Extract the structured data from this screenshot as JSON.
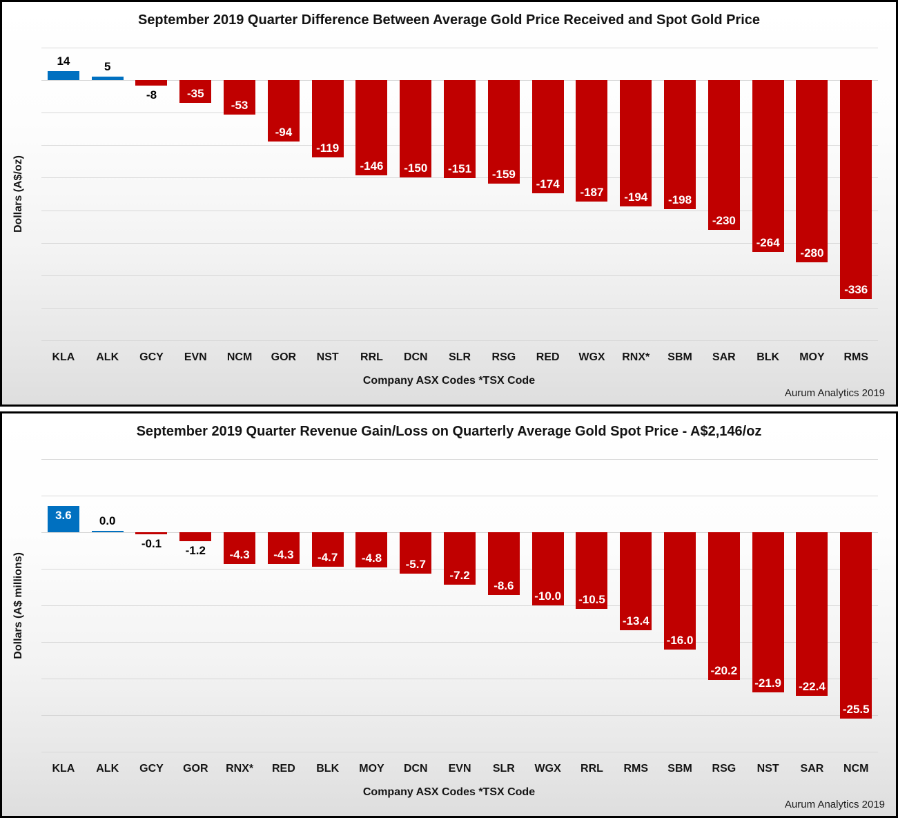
{
  "colors": {
    "positive_bar": "#0070C0",
    "negative_bar": "#C00000",
    "gridline": "#d7d7d7",
    "title_text": "#141414"
  },
  "chart_data": [
    {
      "type": "bar",
      "title": "September 2019 Quarter Difference Between Average Gold Price Received and Spot Gold Price",
      "ylabel": "Dollars (A$/oz)",
      "xlabel": "Company ASX Codes *TSX Code",
      "attribution": "Aurum Analytics 2019",
      "legend": "none",
      "grid": true,
      "categories": [
        "KLA",
        "ALK",
        "GCY",
        "EVN",
        "NCM",
        "GOR",
        "NST",
        "RRL",
        "DCN",
        "SLR",
        "RSG",
        "RED",
        "WGX",
        "RNX*",
        "SBM",
        "SAR",
        "BLK",
        "MOY",
        "RMS"
      ],
      "values": [
        14,
        5,
        -8,
        -35,
        -53,
        -94,
        -119,
        -146,
        -150,
        -151,
        -159,
        -174,
        -187,
        -194,
        -198,
        -230,
        -264,
        -280,
        -336
      ],
      "value_labels": [
        "14",
        "5",
        "-8",
        "-35",
        "-53",
        "-94",
        "-119",
        "-146",
        "-150",
        "-151",
        "-159",
        "-174",
        "-187",
        "-194",
        "-198",
        "-230",
        "-264",
        "-280",
        "-336"
      ],
      "ylim": [
        -400,
        50
      ],
      "grid_step": 50
    },
    {
      "type": "bar",
      "title": "September 2019 Quarter Revenue Gain/Loss on Quarterly Average Gold Spot Price - A$2,146/oz",
      "ylabel": "Dollars (A$ millions)",
      "xlabel": "Company ASX Codes *TSX Code",
      "attribution": "Aurum Analytics 2019",
      "legend": "none",
      "grid": true,
      "categories": [
        "KLA",
        "ALK",
        "GCY",
        "GOR",
        "RNX*",
        "RED",
        "BLK",
        "MOY",
        "DCN",
        "EVN",
        "SLR",
        "WGX",
        "RRL",
        "RMS",
        "SBM",
        "RSG",
        "NST",
        "SAR",
        "NCM"
      ],
      "values": [
        3.6,
        0.0,
        -0.1,
        -1.2,
        -4.3,
        -4.3,
        -4.7,
        -4.8,
        -5.7,
        -7.2,
        -8.6,
        -10.0,
        -10.5,
        -13.4,
        -16.0,
        -20.2,
        -21.9,
        -22.4,
        -25.5
      ],
      "value_labels": [
        "3.6",
        "0.0",
        "-0.1",
        "-1.2",
        "-4.3",
        "-4.3",
        "-4.7",
        "-4.8",
        "-5.7",
        "-7.2",
        "-8.6",
        "-10.0",
        "-10.5",
        "-13.4",
        "-16.0",
        "-20.2",
        "-21.9",
        "-22.4",
        "-25.5"
      ],
      "ylim": [
        -30,
        10
      ],
      "grid_step": 5
    }
  ]
}
